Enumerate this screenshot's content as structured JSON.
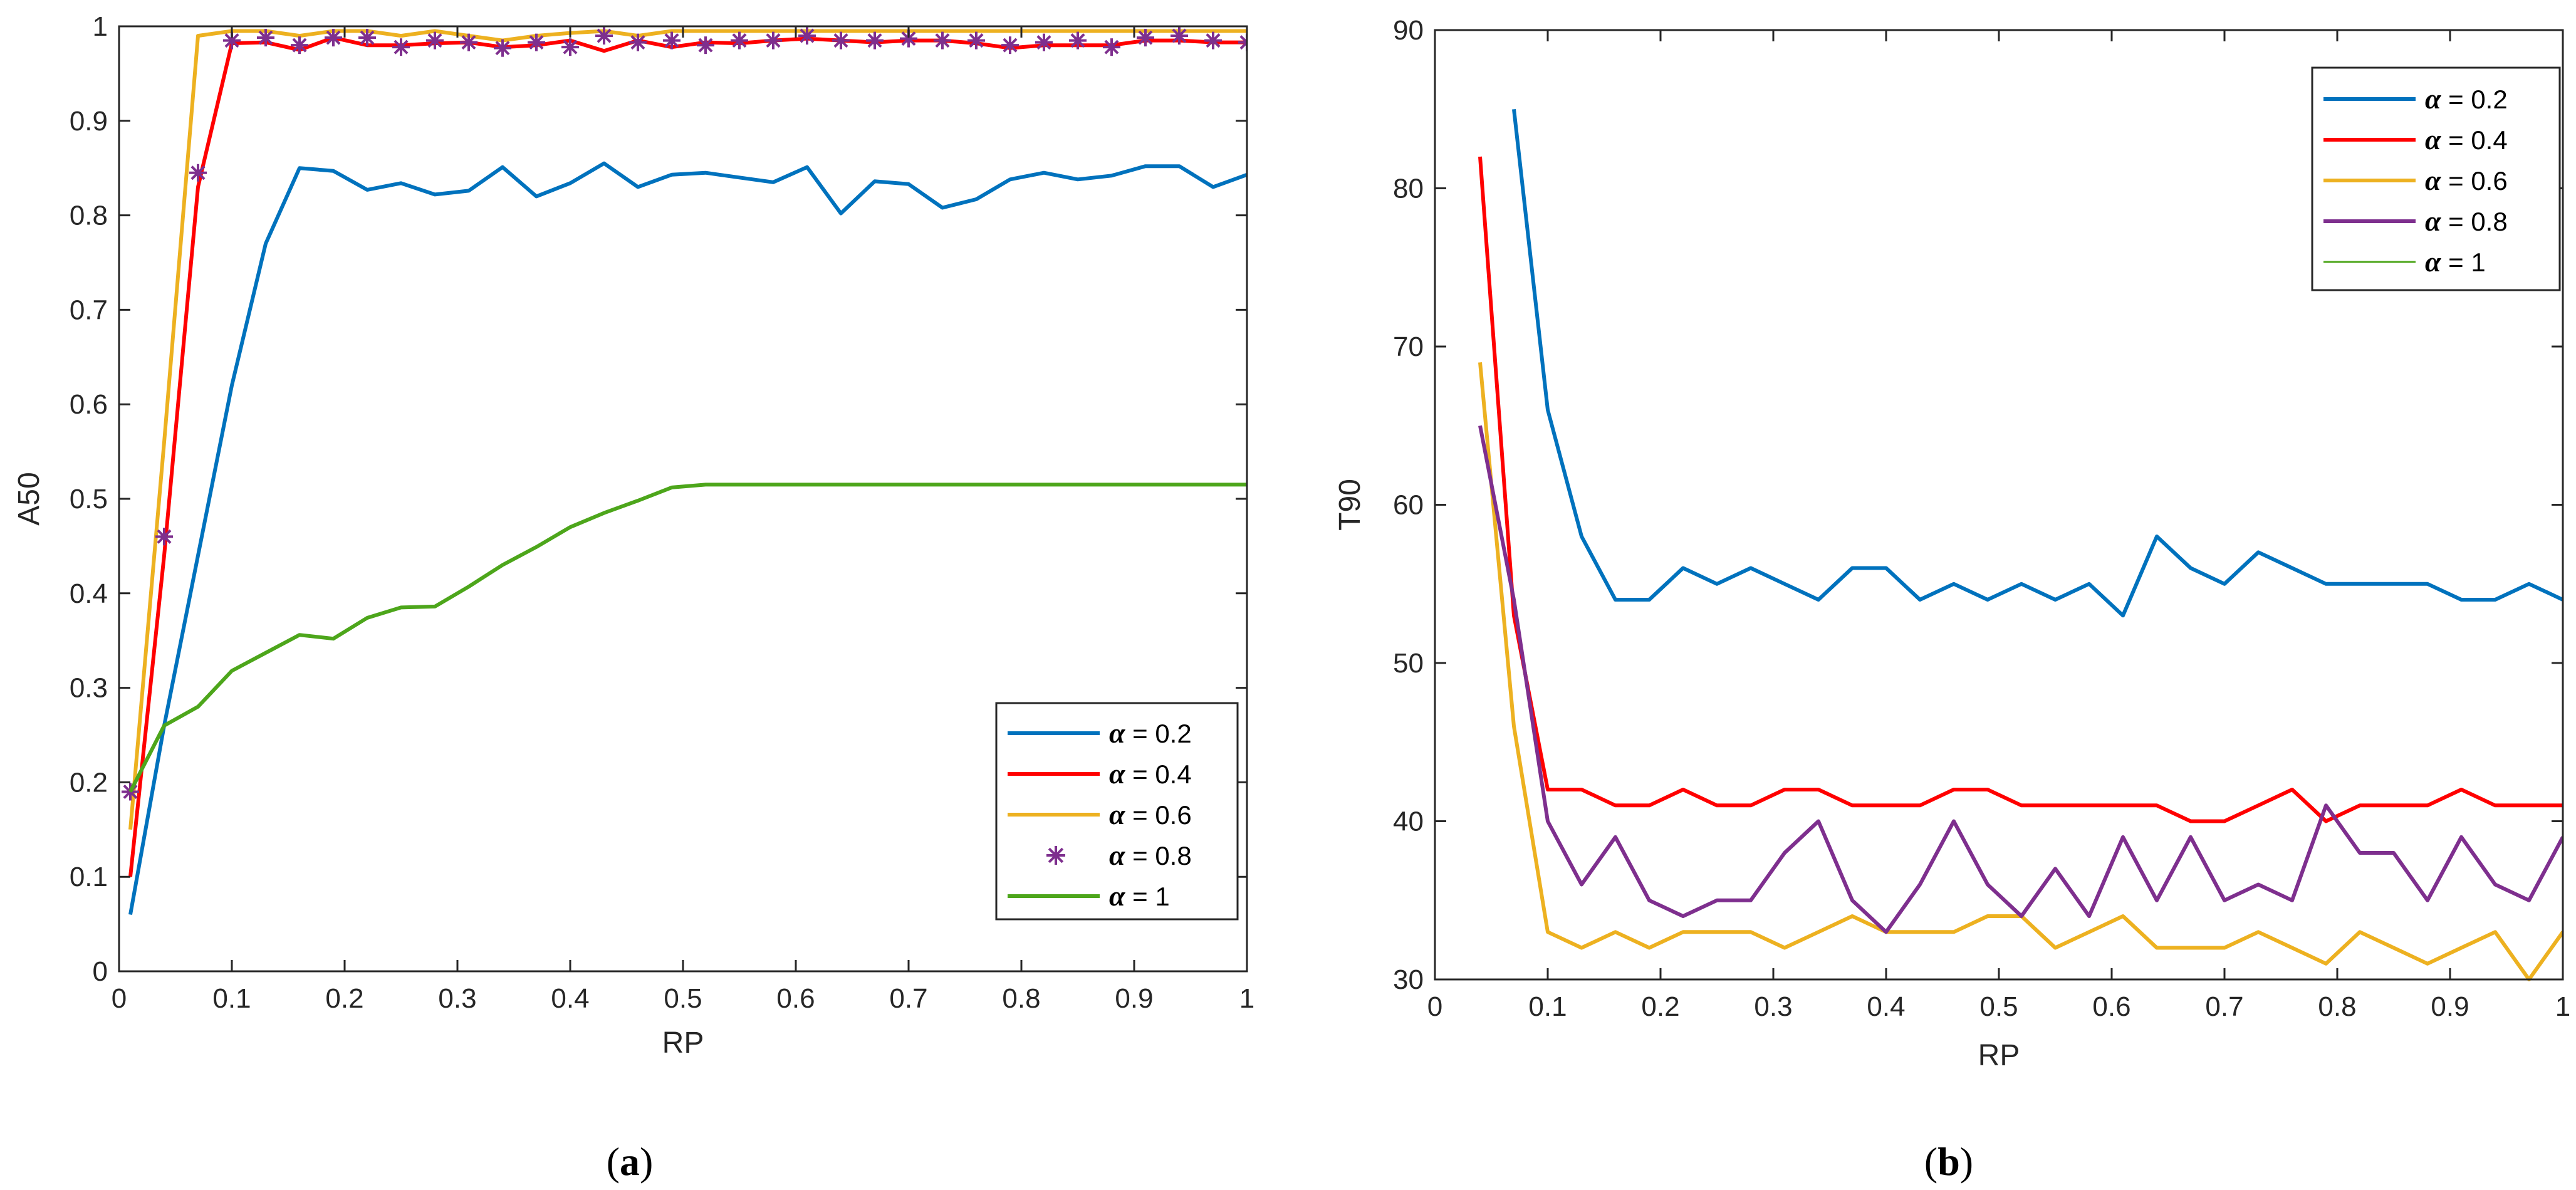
{
  "figure": {
    "panel_a_label": "a",
    "panel_b_label": "b"
  },
  "chart_data": [
    {
      "id": "a",
      "type": "line",
      "xlabel": "RP",
      "ylabel": "A50",
      "xlim": [
        0,
        1
      ],
      "ylim": [
        0,
        1
      ],
      "xticks": [
        0,
        0.1,
        0.2,
        0.3,
        0.4,
        0.5,
        0.6,
        0.7,
        0.8,
        0.9,
        1
      ],
      "xtick_labels": [
        "0",
        "0.1",
        "0.2",
        "0.3",
        "0.4",
        "0.5",
        "0.6",
        "0.7",
        "0.8",
        "0.9",
        "1"
      ],
      "yticks": [
        0,
        0.1,
        0.2,
        0.3,
        0.4,
        0.5,
        0.6,
        0.7,
        0.8,
        0.9,
        1
      ],
      "ytick_labels": [
        "0",
        "0.1",
        "0.2",
        "0.3",
        "0.4",
        "0.5",
        "0.6",
        "0.7",
        "0.8",
        "0.9",
        "1"
      ],
      "grid": false,
      "legend_position": "bottom-right",
      "series": [
        {
          "name": "α = 0.2",
          "legend_symbol": "α",
          "legend_value": " = 0.2",
          "color": "#0072BD",
          "marker": "none",
          "x": [
            0.01,
            0.04,
            0.07,
            0.1,
            0.13,
            0.16,
            0.19,
            0.22,
            0.25,
            0.28,
            0.31,
            0.34,
            0.37,
            0.4,
            0.43,
            0.46,
            0.49,
            0.52,
            0.55,
            0.58,
            0.61,
            0.64,
            0.67,
            0.7,
            0.73,
            0.76,
            0.79,
            0.82,
            0.85,
            0.88,
            0.91,
            0.94,
            0.97,
            1.0
          ],
          "y": [
            0.06,
            0.26,
            0.44,
            0.62,
            0.77,
            0.85,
            0.847,
            0.827,
            0.834,
            0.822,
            0.826,
            0.851,
            0.82,
            0.834,
            0.855,
            0.83,
            0.843,
            0.845,
            0.84,
            0.835,
            0.851,
            0.802,
            0.836,
            0.833,
            0.808,
            0.817,
            0.838,
            0.845,
            0.838,
            0.842,
            0.852,
            0.852,
            0.83,
            0.843
          ]
        },
        {
          "name": "α = 0.4",
          "legend_symbol": "α",
          "legend_value": " = 0.4",
          "color": "#FF0000",
          "marker": "none",
          "x": [
            0.01,
            0.04,
            0.07,
            0.1,
            0.13,
            0.16,
            0.19,
            0.22,
            0.25,
            0.28,
            0.31,
            0.34,
            0.37,
            0.4,
            0.43,
            0.46,
            0.49,
            0.52,
            0.55,
            0.58,
            0.61,
            0.64,
            0.67,
            0.7,
            0.73,
            0.76,
            0.79,
            0.82,
            0.85,
            0.88,
            0.91,
            0.94,
            0.97,
            1.0
          ],
          "y": [
            0.1,
            0.44,
            0.83,
            0.982,
            0.983,
            0.975,
            0.988,
            0.98,
            0.98,
            0.982,
            0.983,
            0.978,
            0.98,
            0.985,
            0.974,
            0.985,
            0.978,
            0.983,
            0.982,
            0.985,
            0.987,
            0.985,
            0.983,
            0.985,
            0.985,
            0.982,
            0.977,
            0.98,
            0.98,
            0.98,
            0.985,
            0.985,
            0.983,
            0.983
          ]
        },
        {
          "name": "α = 0.6",
          "legend_symbol": "α",
          "legend_value": " = 0.6",
          "color": "#EDB120",
          "marker": "none",
          "x": [
            0.01,
            0.04,
            0.07,
            0.1,
            0.13,
            0.16,
            0.19,
            0.22,
            0.25,
            0.28,
            0.31,
            0.34,
            0.37,
            0.4,
            0.43,
            0.46,
            0.49,
            0.52,
            0.55,
            0.58,
            0.61,
            0.64,
            0.67,
            0.7,
            0.73,
            0.76,
            0.79,
            0.82,
            0.85,
            0.88,
            0.91,
            0.94,
            0.97,
            1.0
          ],
          "y": [
            0.15,
            0.56,
            0.99,
            0.995,
            0.995,
            0.99,
            0.995,
            0.995,
            0.99,
            0.995,
            0.99,
            0.985,
            0.99,
            0.993,
            0.995,
            0.99,
            0.995,
            0.995,
            0.995,
            0.995,
            0.995,
            0.995,
            0.995,
            0.995,
            0.995,
            0.995,
            0.995,
            0.995,
            0.995,
            0.995,
            0.995,
            0.995,
            0.995,
            0.995
          ]
        },
        {
          "name": "α = 0.8",
          "legend_symbol": "α",
          "legend_value": " = 0.8",
          "color": "#7E2F8E",
          "marker": "asterisk",
          "line": false,
          "x": [
            0.01,
            0.04,
            0.07,
            0.1,
            0.13,
            0.16,
            0.19,
            0.22,
            0.25,
            0.28,
            0.31,
            0.34,
            0.37,
            0.4,
            0.43,
            0.46,
            0.49,
            0.52,
            0.55,
            0.58,
            0.61,
            0.64,
            0.67,
            0.7,
            0.73,
            0.76,
            0.79,
            0.82,
            0.85,
            0.88,
            0.91,
            0.94,
            0.97,
            1.0
          ],
          "y": [
            0.19,
            0.46,
            0.845,
            0.985,
            0.988,
            0.98,
            0.988,
            0.988,
            0.978,
            0.985,
            0.983,
            0.977,
            0.983,
            0.978,
            0.99,
            0.983,
            0.985,
            0.98,
            0.985,
            0.985,
            0.99,
            0.985,
            0.985,
            0.987,
            0.985,
            0.985,
            0.98,
            0.983,
            0.985,
            0.978,
            0.988,
            0.99,
            0.985,
            0.983
          ]
        },
        {
          "name": "α = 1",
          "legend_symbol": "α",
          "legend_value": " = 1",
          "color": "#4DA61B",
          "marker": "none",
          "x": [
            0.01,
            0.04,
            0.07,
            0.1,
            0.13,
            0.16,
            0.19,
            0.22,
            0.25,
            0.28,
            0.31,
            0.34,
            0.37,
            0.4,
            0.43,
            0.46,
            0.49,
            0.52,
            0.55,
            0.58,
            0.61,
            0.64,
            0.67,
            0.7,
            0.73,
            0.76,
            0.79,
            0.82,
            0.85,
            0.88,
            0.91,
            0.94,
            0.97,
            1.0
          ],
          "y": [
            0.19,
            0.26,
            0.28,
            0.318,
            0.337,
            0.356,
            0.352,
            0.374,
            0.385,
            0.386,
            0.407,
            0.43,
            0.449,
            0.47,
            0.485,
            0.498,
            0.512,
            0.515,
            0.515,
            0.515,
            0.515,
            0.515,
            0.515,
            0.515,
            0.515,
            0.515,
            0.515,
            0.515,
            0.515,
            0.515,
            0.515,
            0.515,
            0.515,
            0.515
          ]
        }
      ]
    },
    {
      "id": "b",
      "type": "line",
      "xlabel": "RP",
      "ylabel": "T90",
      "xlim": [
        0,
        1
      ],
      "ylim": [
        30,
        90
      ],
      "xticks": [
        0,
        0.1,
        0.2,
        0.3,
        0.4,
        0.5,
        0.6,
        0.7,
        0.8,
        0.9,
        1
      ],
      "xtick_labels": [
        "0",
        "0.1",
        "0.2",
        "0.3",
        "0.4",
        "0.5",
        "0.6",
        "0.7",
        "0.8",
        "0.9",
        "1"
      ],
      "yticks": [
        30,
        40,
        50,
        60,
        70,
        80,
        90
      ],
      "ytick_labels": [
        "30",
        "40",
        "50",
        "60",
        "70",
        "80",
        "90"
      ],
      "grid": false,
      "legend_position": "top-right",
      "series": [
        {
          "name": "α = 0.2",
          "legend_symbol": "α",
          "legend_value": " = 0.2",
          "color": "#0072BD",
          "marker": "none",
          "x": [
            0.07,
            0.1,
            0.13,
            0.16,
            0.19,
            0.22,
            0.25,
            0.28,
            0.31,
            0.34,
            0.37,
            0.4,
            0.43,
            0.46,
            0.49,
            0.52,
            0.55,
            0.58,
            0.61,
            0.64,
            0.67,
            0.7,
            0.73,
            0.76,
            0.79,
            0.82,
            0.85,
            0.88,
            0.91,
            0.94,
            0.97,
            1.0
          ],
          "y": [
            85,
            66,
            58,
            54,
            54,
            56,
            55,
            56,
            55,
            54,
            56,
            56,
            54,
            55,
            54,
            55,
            54,
            55,
            53,
            58,
            56,
            55,
            57,
            56,
            55,
            55,
            55,
            55,
            54,
            54,
            55,
            54
          ]
        },
        {
          "name": "α = 0.4",
          "legend_symbol": "α",
          "legend_value": " = 0.4",
          "color": "#FF0000",
          "marker": "none",
          "x": [
            0.04,
            0.07,
            0.1,
            0.13,
            0.16,
            0.19,
            0.22,
            0.25,
            0.28,
            0.31,
            0.34,
            0.37,
            0.4,
            0.43,
            0.46,
            0.49,
            0.52,
            0.55,
            0.58,
            0.61,
            0.64,
            0.67,
            0.7,
            0.73,
            0.76,
            0.79,
            0.82,
            0.85,
            0.88,
            0.91,
            0.94,
            0.97,
            1.0
          ],
          "y": [
            82,
            53,
            42,
            42,
            41,
            41,
            42,
            41,
            41,
            42,
            42,
            41,
            41,
            41,
            42,
            42,
            41,
            41,
            41,
            41,
            41,
            40,
            40,
            41,
            42,
            40,
            41,
            41,
            41,
            42,
            41,
            41,
            41
          ]
        },
        {
          "name": "α = 0.6",
          "legend_symbol": "α",
          "legend_value": " = 0.6",
          "color": "#EDB120",
          "marker": "none",
          "x": [
            0.04,
            0.07,
            0.1,
            0.13,
            0.16,
            0.19,
            0.22,
            0.25,
            0.28,
            0.31,
            0.34,
            0.37,
            0.4,
            0.43,
            0.46,
            0.49,
            0.52,
            0.55,
            0.58,
            0.61,
            0.64,
            0.67,
            0.7,
            0.73,
            0.76,
            0.79,
            0.82,
            0.85,
            0.88,
            0.91,
            0.94,
            0.97,
            1.0
          ],
          "y": [
            69,
            46,
            33,
            32,
            33,
            32,
            33,
            33,
            33,
            32,
            33,
            34,
            33,
            33,
            33,
            34,
            34,
            32,
            33,
            34,
            32,
            32,
            32,
            33,
            32,
            31,
            33,
            32,
            31,
            32,
            33,
            30,
            33
          ]
        },
        {
          "name": "α = 0.8",
          "legend_symbol": "α",
          "legend_value": " = 0.8",
          "color": "#7E2F8E",
          "marker": "none",
          "x": [
            0.04,
            0.07,
            0.1,
            0.13,
            0.16,
            0.19,
            0.22,
            0.25,
            0.28,
            0.31,
            0.34,
            0.37,
            0.4,
            0.43,
            0.46,
            0.49,
            0.52,
            0.55,
            0.58,
            0.61,
            0.64,
            0.67,
            0.7,
            0.73,
            0.76,
            0.79,
            0.82,
            0.85,
            0.88,
            0.91,
            0.94,
            0.97,
            1.0
          ],
          "y": [
            65,
            54,
            40,
            36,
            39,
            35,
            34,
            35,
            35,
            38,
            40,
            35,
            33,
            36,
            40,
            36,
            34,
            37,
            34,
            39,
            35,
            39,
            35,
            36,
            35,
            41,
            38,
            38,
            35,
            39,
            36,
            35,
            39
          ]
        },
        {
          "name": "α = 1",
          "legend_symbol": "α",
          "legend_value": " = 1",
          "color": "#4DA61B",
          "marker": "none",
          "line_width_thin": true,
          "x": [],
          "y": []
        }
      ]
    }
  ]
}
